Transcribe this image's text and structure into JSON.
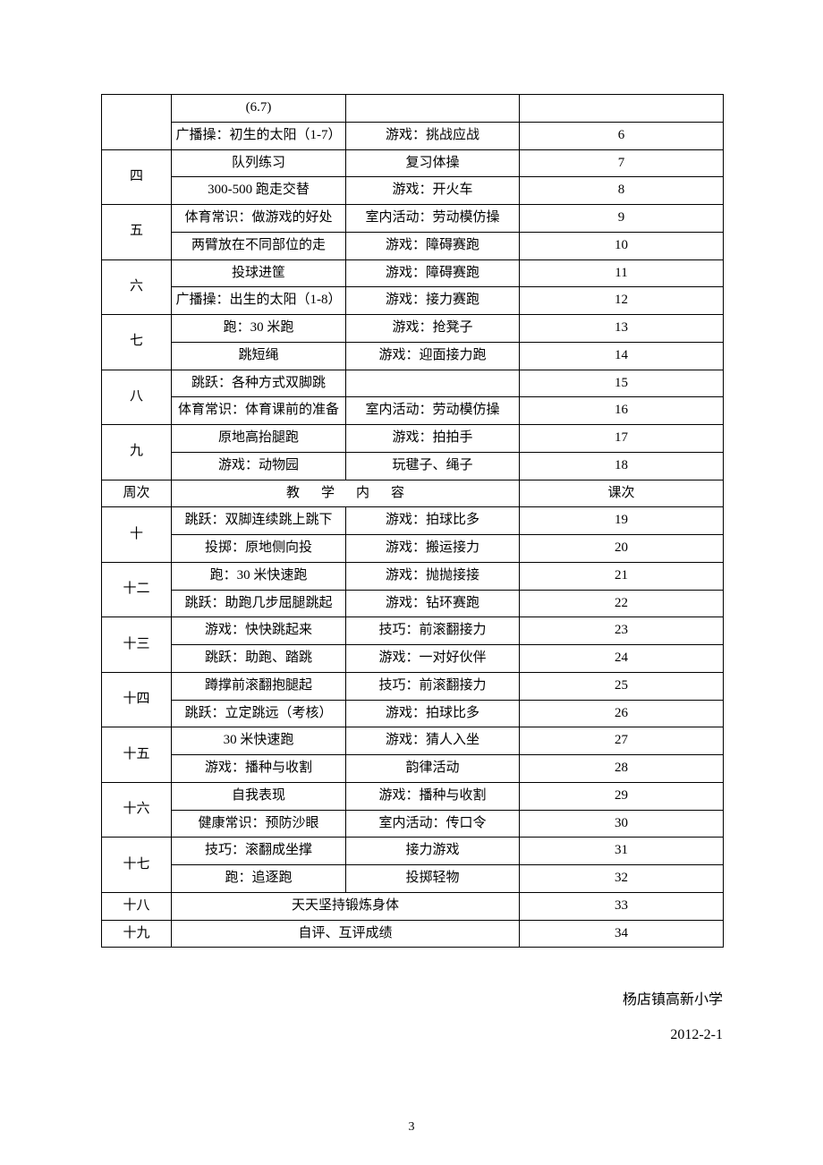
{
  "table": {
    "row0": {
      "cell1": "(6.7)"
    },
    "row1": {
      "cell1": "广播操：初生的太阳（1-7）",
      "cell2": "游戏：挑战应战",
      "lesson": "6"
    },
    "week4": "四",
    "row2": {
      "cell1": "队列练习",
      "cell2": "复习体操",
      "lesson": "7"
    },
    "row3": {
      "cell1": "300-500 跑走交替",
      "cell2": "游戏：开火车",
      "lesson": "8"
    },
    "week5": "五",
    "row4": {
      "cell1": "体育常识：做游戏的好处",
      "cell2": "室内活动：劳动模仿操",
      "lesson": "9"
    },
    "row5": {
      "cell1": "两臂放在不同部位的走",
      "cell2": "游戏：障碍赛跑",
      "lesson": "10"
    },
    "week6": "六",
    "row6": {
      "cell1": "投球进筐",
      "cell2": "游戏：障碍赛跑",
      "lesson": "11"
    },
    "row7": {
      "cell1": "广播操：出生的太阳（1-8）",
      "cell2": "游戏：接力赛跑",
      "lesson": "12"
    },
    "week7": "七",
    "row8": {
      "cell1": "跑：30 米跑",
      "cell2": "游戏：抢凳子",
      "lesson": "13"
    },
    "row9": {
      "cell1": "跳短绳",
      "cell2": "游戏：迎面接力跑",
      "lesson": "14"
    },
    "week8": "八",
    "row10": {
      "cell1": "跳跃：各种方式双脚跳",
      "cell2": "",
      "lesson": "15"
    },
    "row11": {
      "cell1": "体育常识：体育课前的准备",
      "cell2": "室内活动：劳动模仿操",
      "lesson": "16"
    },
    "week9": "九",
    "row12": {
      "cell1": "原地高抬腿跑",
      "cell2": "游戏：拍拍手",
      "lesson": "17"
    },
    "row13": {
      "cell1": "游戏：动物园",
      "cell2": "玩毽子、绳子",
      "lesson": "18"
    },
    "header": {
      "week": "周次",
      "content": "教学内容",
      "lesson": "课次"
    },
    "week10": "十",
    "row14": {
      "cell1": "跳跃：双脚连续跳上跳下",
      "cell2": "游戏：拍球比多",
      "lesson": "19"
    },
    "row15": {
      "cell1": "投掷：原地侧向投",
      "cell2": "游戏：搬运接力",
      "lesson": "20"
    },
    "week12": "十二",
    "row16": {
      "cell1": "跑：30 米快速跑",
      "cell2": "游戏：抛抛接接",
      "lesson": "21"
    },
    "row17": {
      "cell1": "跳跃：助跑几步屈腿跳起",
      "cell2": "游戏：钻环赛跑",
      "lesson": "22"
    },
    "week13": "十三",
    "row18": {
      "cell1": "游戏：快快跳起来",
      "cell2": "技巧：前滚翻接力",
      "lesson": "23"
    },
    "row19": {
      "cell1": "跳跃：助跑、踏跳",
      "cell2": "游戏：一对好伙伴",
      "lesson": "24"
    },
    "week14": "十四",
    "row20": {
      "cell1": "蹲撑前滚翻抱腿起",
      "cell2": "技巧：前滚翻接力",
      "lesson": "25"
    },
    "row21": {
      "cell1": "跳跃：立定跳远（考核）",
      "cell2": "游戏：拍球比多",
      "lesson": "26"
    },
    "week15": "十五",
    "row22": {
      "cell1": "30 米快速跑",
      "cell2": "游戏：猜人入坐",
      "lesson": "27"
    },
    "row23": {
      "cell1": "游戏：播种与收割",
      "cell2": "韵律活动",
      "lesson": "28"
    },
    "week16": "十六",
    "row24": {
      "cell1": "自我表现",
      "cell2": "游戏：播种与收割",
      "lesson": "29"
    },
    "row25": {
      "cell1": "健康常识：预防沙眼",
      "cell2": "室内活动：传口令",
      "lesson": "30"
    },
    "week17": "十七",
    "row26": {
      "cell1": "技巧：滚翻成坐撑",
      "cell2": "接力游戏",
      "lesson": "31"
    },
    "row27": {
      "cell1": "跑：追逐跑",
      "cell2": "投掷轻物",
      "lesson": "32"
    },
    "week18": "十八",
    "row28": {
      "content": "天天坚持锻炼身体",
      "lesson": "33"
    },
    "week19": "十九",
    "row29": {
      "content": "自评、互评成绩",
      "lesson": "34"
    }
  },
  "footer": {
    "school": "杨店镇高新小学",
    "date": "2012-2-1"
  },
  "pageNumber": "3"
}
